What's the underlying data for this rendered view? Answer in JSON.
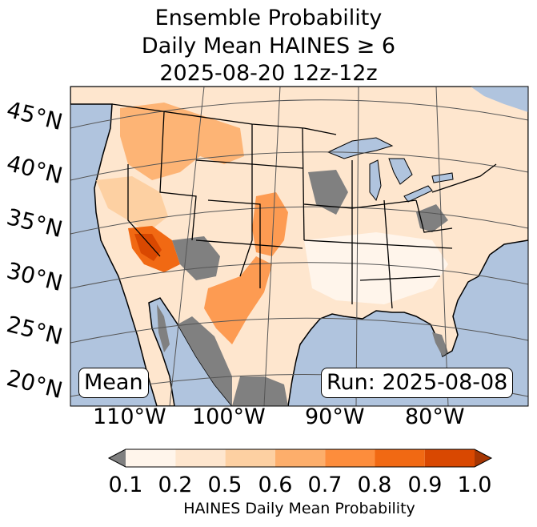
{
  "title": {
    "line1": "Ensemble Probability",
    "line2": "Daily Mean HAINES ≥ 6",
    "line3": "2025-08-20 12z-12z"
  },
  "map": {
    "latitude_labels": [
      "45°N",
      "40°N",
      "35°N",
      "30°N",
      "25°N",
      "20°N"
    ],
    "longitude_labels": [
      "110°W",
      "100°W",
      "90°W",
      "80°W"
    ],
    "stat_label": "Mean",
    "run_label": "Run: 2025-08-08",
    "colors": {
      "ocean": "#b0c4de",
      "land": "#ffffff",
      "masked": "#808080",
      "lakes": "#b0c4de",
      "borders": "#000000",
      "grid": "#555555"
    }
  },
  "colorbar": {
    "label": "HAINES Daily Mean Probability",
    "ticks": [
      "0.1",
      "0.2",
      "0.5",
      "0.6",
      "0.7",
      "0.8",
      "0.9",
      "1.0"
    ],
    "under_color": "#808080",
    "colors": [
      "#fff5eb",
      "#fee6ce",
      "#fdd0a2",
      "#fdae6b",
      "#fd8d3c",
      "#f16913",
      "#d94801"
    ],
    "over_color": "#a63603"
  }
}
